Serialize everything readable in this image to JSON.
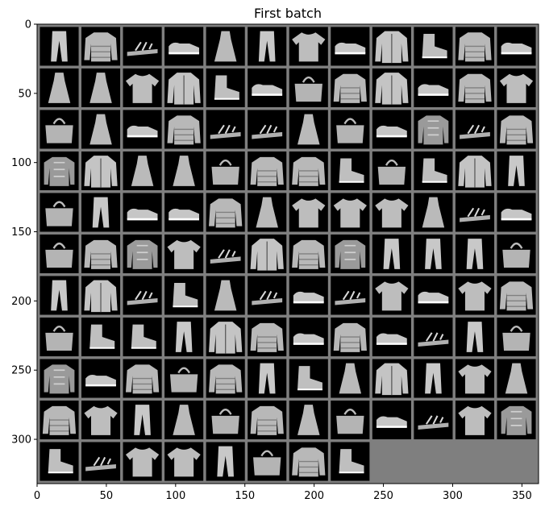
{
  "chart_data": {
    "type": "image_grid",
    "title": "First batch",
    "xlabel": "",
    "ylabel": "",
    "xlim": [
      0,
      362
    ],
    "ylim": [
      332,
      0
    ],
    "xticks": [
      0,
      50,
      100,
      150,
      200,
      250,
      300,
      350
    ],
    "yticks": [
      0,
      50,
      100,
      150,
      200,
      250,
      300
    ],
    "grid": false,
    "grid_rows": 11,
    "grid_cols": 12,
    "tile_size": 28,
    "padding": 2,
    "image_count": 128,
    "pad_color": "#7f7f7f",
    "image_background": "#000000",
    "items": [
      "trouser",
      "pullover",
      "sandal",
      "sneaker",
      "dress",
      "trouser",
      "tshirt",
      "sneaker",
      "coat",
      "ankle_boot",
      "pullover",
      "sneaker",
      "dress",
      "dress",
      "tshirt",
      "coat",
      "ankle_boot",
      "sneaker",
      "bag",
      "pullover",
      "coat",
      "sneaker",
      "pullover",
      "tshirt",
      "bag",
      "dress",
      "sneaker",
      "pullover",
      "sandal",
      "sandal",
      "dress",
      "bag",
      "sneaker",
      "shirt",
      "sandal",
      "pullover",
      "shirt",
      "coat",
      "dress",
      "dress",
      "bag",
      "pullover",
      "pullover",
      "ankle_boot",
      "bag",
      "ankle_boot",
      "coat",
      "trouser",
      "bag",
      "trouser",
      "sneaker",
      "sneaker",
      "pullover",
      "dress",
      "tshirt",
      "tshirt",
      "tshirt",
      "dress",
      "sandal",
      "sneaker",
      "bag",
      "pullover",
      "shirt",
      "tshirt",
      "sandal",
      "coat",
      "pullover",
      "shirt",
      "trouser",
      "trouser",
      "trouser",
      "bag",
      "trouser",
      "coat",
      "sandal",
      "ankle_boot",
      "dress",
      "sandal",
      "sneaker",
      "sandal",
      "tshirt",
      "sneaker",
      "tshirt",
      "pullover",
      "bag",
      "ankle_boot",
      "ankle_boot",
      "trouser",
      "coat",
      "pullover",
      "sneaker",
      "pullover",
      "sneaker",
      "sandal",
      "trouser",
      "bag",
      "shirt",
      "sneaker",
      "pullover",
      "bag",
      "pullover",
      "trouser",
      "ankle_boot",
      "dress",
      "coat",
      "trouser",
      "tshirt",
      "dress",
      "pullover",
      "tshirt",
      "trouser",
      "dress",
      "bag",
      "pullover",
      "dress",
      "bag",
      "sneaker",
      "sandal",
      "tshirt",
      "shirt",
      "ankle_boot",
      "sandal",
      "tshirt",
      "tshirt",
      "trouser",
      "bag",
      "pullover",
      "ankle_boot"
    ]
  }
}
